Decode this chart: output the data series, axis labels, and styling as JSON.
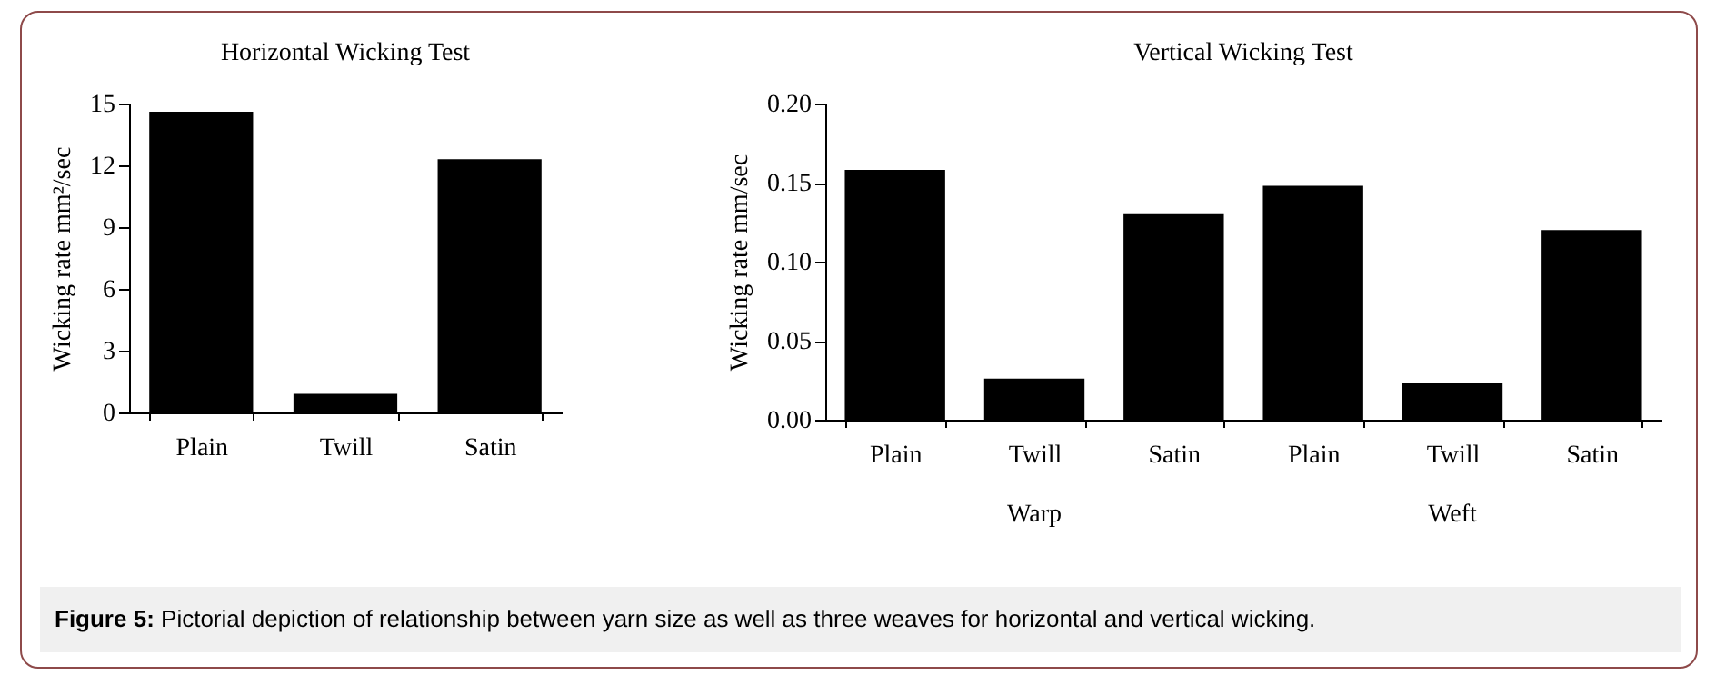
{
  "chart_data": [
    {
      "type": "bar",
      "title": "Horizontal Wicking Test",
      "ylabel": "Wicking rate mm²/sec",
      "categories": [
        "Plain",
        "Twill",
        "Satin"
      ],
      "series": [
        {
          "color": "#000000",
          "values": [
            14.6,
            0.9,
            12.3
          ]
        }
      ],
      "ylim": [
        0,
        15
      ],
      "yticks": [
        0,
        3,
        6,
        9,
        12,
        15
      ],
      "annotations": [
        "Figure 5: Pictorial depiction of relationship between yarn size as well as three weaves for horizontal and vertical wicking."
      ]
    },
    {
      "type": "bar",
      "title": "Vertical Wicking Test",
      "ylabel": "Wicking rate mm/sec",
      "categories": [
        "Plain",
        "Twill",
        "Satin",
        "Plain",
        "Twill",
        "Satin"
      ],
      "series": [
        {
          "color": "#000000",
          "values": [
            0.158,
            0.026,
            0.13,
            0.148,
            0.023,
            0.12
          ]
        }
      ],
      "ylim": [
        0,
        0.2
      ],
      "yticks": [
        {
          "value": 0,
          "label": "0.00"
        },
        {
          "value": 0.05,
          "label": "0.05"
        },
        {
          "value": 0.1,
          "label": "0.10"
        },
        {
          "value": 0.15,
          "label": "0.15"
        },
        {
          "value": 0.2,
          "label": "0.20"
        }
      ],
      "annotations": [
        "Warp",
        "Weft"
      ]
    }
  ]
}
